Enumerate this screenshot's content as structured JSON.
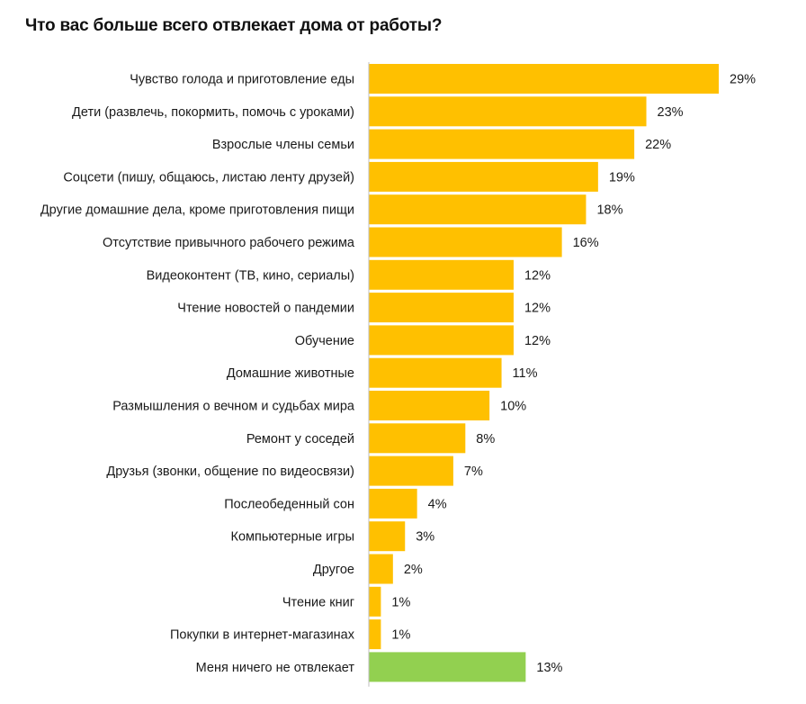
{
  "title": "Что вас больше  всего отвлекает дома от работы?",
  "colors": {
    "bar": "#FFC000",
    "bar_highlight": "#92D050",
    "axis": "#bfbfbf"
  },
  "chart_data": {
    "type": "bar",
    "orientation": "horizontal",
    "title": "Что вас больше  всего отвлекает дома от работы?",
    "xlabel": "",
    "ylabel": "",
    "xlim": [
      0,
      29
    ],
    "grid": false,
    "categories": [
      "Чувство голода и приготовление еды",
      "Дети (развлечь, покормить, помочь с уроками)",
      "Взрослые члены семьи",
      "Соцсети (пишу, общаюсь, листаю ленту друзей)",
      "Другие домашние дела, кроме приготовления пищи",
      "Отсутствие привычного рабочего режима",
      "Видеоконтент (ТВ, кино, сериалы)",
      "Чтение новостей о пандемии",
      "Обучение",
      "Домашние животные",
      "Размышления о вечном и судьбах мира",
      "Ремонт у соседей",
      "Друзья (звонки, общение по видеосвязи)",
      "Послеобеденный сон",
      "Компьютерные игры",
      "Другое",
      "Чтение книг",
      "Покупки в интернет-магазинах",
      "Меня ничего не отвлекает"
    ],
    "values": [
      29,
      23,
      22,
      19,
      18,
      16,
      12,
      12,
      12,
      11,
      10,
      8,
      7,
      4,
      3,
      2,
      1,
      1,
      13
    ],
    "value_labels": [
      "29%",
      "23%",
      "22%",
      "19%",
      "18%",
      "16%",
      "12%",
      "12%",
      "12%",
      "11%",
      "10%",
      "8%",
      "7%",
      "4%",
      "3%",
      "2%",
      "1%",
      "1%",
      "13%"
    ],
    "highlight_index": 18
  }
}
